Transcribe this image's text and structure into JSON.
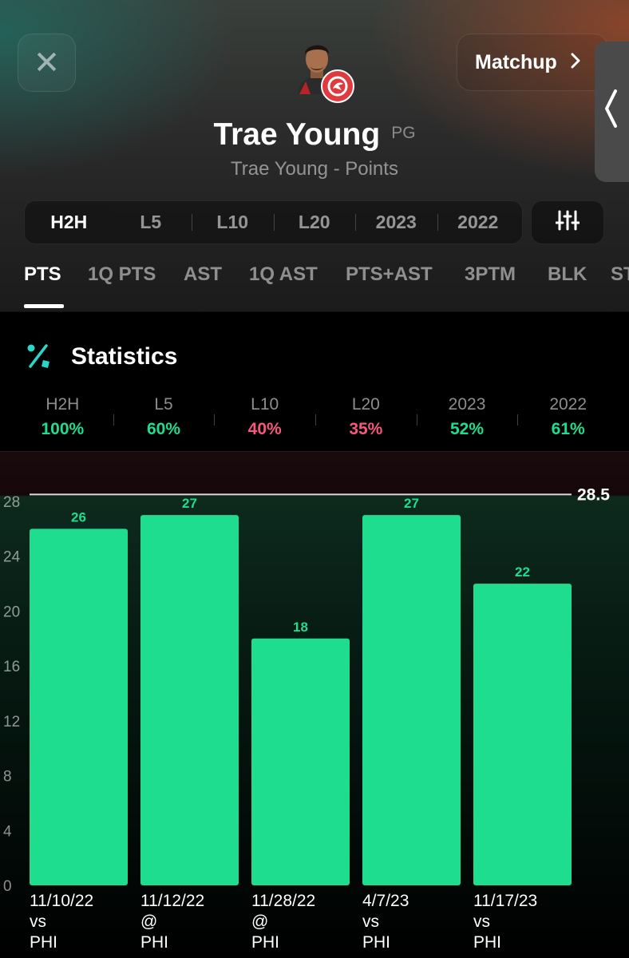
{
  "header": {
    "close_label": "✕",
    "matchup_label": "Matchup",
    "player_name": "Trae Young",
    "position": "PG",
    "subtitle": "Trae Young - Points"
  },
  "range_tabs": [
    {
      "label": "H2H",
      "active": true
    },
    {
      "label": "L5"
    },
    {
      "label": "L10"
    },
    {
      "label": "L20"
    },
    {
      "label": "2023"
    },
    {
      "label": "2022"
    }
  ],
  "stat_tabs": [
    {
      "label": "PTS",
      "active": true
    },
    {
      "label": "1Q PTS"
    },
    {
      "label": "AST"
    },
    {
      "label": "1Q AST"
    },
    {
      "label": "PTS+AST"
    },
    {
      "label": "3PTM"
    },
    {
      "label": "BLK"
    },
    {
      "label": "ST"
    }
  ],
  "statistics": {
    "title": "Statistics",
    "hit_rates": [
      {
        "label": "H2H",
        "value": "100%",
        "status": "good"
      },
      {
        "label": "L5",
        "value": "60%",
        "status": "good"
      },
      {
        "label": "L10",
        "value": "40%",
        "status": "bad"
      },
      {
        "label": "L20",
        "value": "35%",
        "status": "bad"
      },
      {
        "label": "2023",
        "value": "52%",
        "status": "good"
      },
      {
        "label": "2022",
        "value": "61%",
        "status": "good"
      }
    ]
  },
  "colors": {
    "good": "#1edd8f",
    "bad": "#f4597c",
    "bar": "#1edd8f",
    "team": "#e03a3e"
  },
  "chart_data": {
    "type": "bar",
    "categories": [
      "11/10/22",
      "11/12/22",
      "11/28/22",
      "4/7/23",
      "11/17/23"
    ],
    "category_lines": [
      [
        "11/10/22",
        "vs",
        "PHI"
      ],
      [
        "11/12/22",
        "@",
        "PHI"
      ],
      [
        "11/28/22",
        "@",
        "PHI"
      ],
      [
        "4/7/23",
        "vs",
        "PHI"
      ],
      [
        "11/17/23",
        "vs",
        "PHI"
      ]
    ],
    "values": [
      26,
      27,
      18,
      27,
      22
    ],
    "line": {
      "value": 28.5,
      "label": "28.5"
    },
    "yticks": [
      0,
      4,
      8,
      12,
      16,
      20,
      24,
      28
    ],
    "ylim": [
      0,
      28
    ],
    "title": "",
    "xlabel": "",
    "ylabel": ""
  }
}
